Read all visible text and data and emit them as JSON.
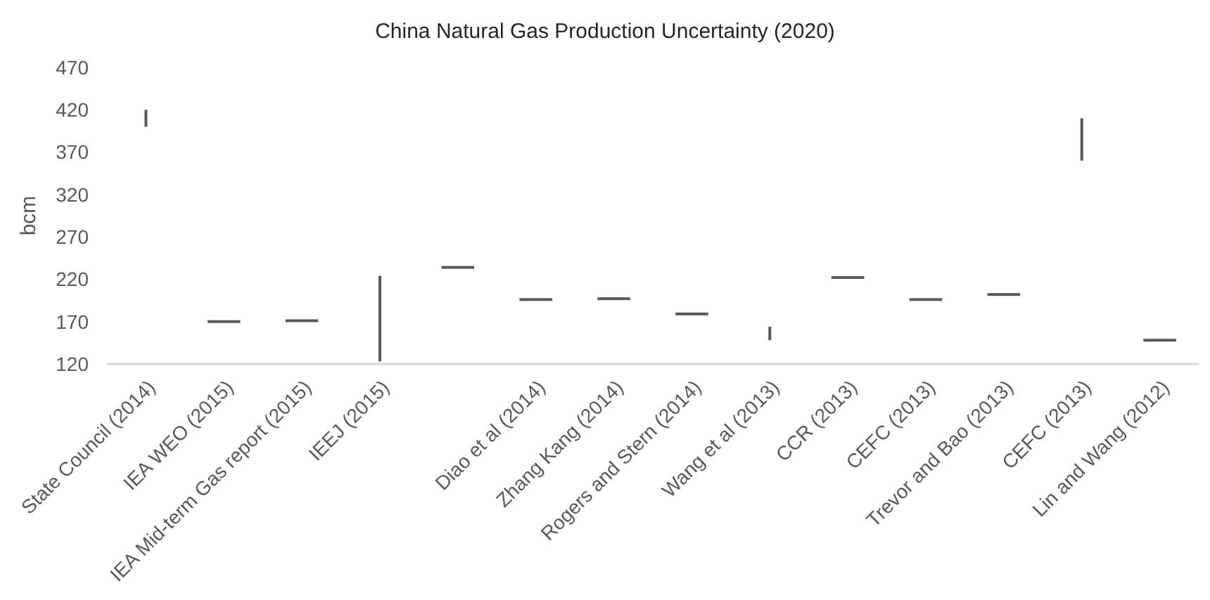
{
  "chart_data": {
    "type": "bar",
    "title": "China Natural Gas Production Uncertainty (2020)",
    "ylabel": "bcm",
    "categories": [
      "State Council (2014)",
      "IEA WEO (2015)",
      "IEA Mid-term Gas report (2015)",
      "IEEJ (2015)",
      null,
      "Diao et al (2014)",
      "Zhang Kang (2014)",
      "Rogers and Stern (2014)",
      "Wang et al (2013)",
      "CCR (2013)",
      "CEFC (2013)",
      "Trevor and Bao (2013)",
      "CEFC (2013)",
      "Lin and Wang (2012)"
    ],
    "base": [
      400,
      170,
      171,
      123,
      234,
      196,
      197,
      179,
      148,
      222,
      196,
      202,
      360,
      148
    ],
    "values": [
      20,
      0,
      0,
      101,
      0,
      0,
      0,
      0,
      16,
      0,
      0,
      0,
      50,
      0
    ],
    "color": "#595959",
    "ylim": [
      120,
      470
    ],
    "yticks": [
      120,
      170,
      220,
      270,
      320,
      370,
      420,
      470
    ],
    "grid": false
  }
}
